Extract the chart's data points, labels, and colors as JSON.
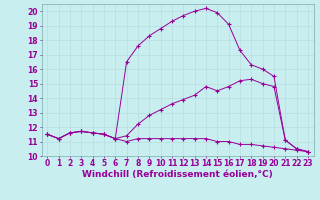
{
  "xlabel": "Windchill (Refroidissement éolien,°C)",
  "bg_color": "#c8eef0",
  "line_color": "#990099",
  "grid_color": "#b8dde0",
  "xlim": [
    -0.5,
    23.5
  ],
  "ylim": [
    10,
    20.5
  ],
  "xticks": [
    0,
    1,
    2,
    3,
    4,
    5,
    6,
    7,
    8,
    9,
    10,
    11,
    12,
    13,
    14,
    15,
    16,
    17,
    18,
    19,
    20,
    21,
    22,
    23
  ],
  "yticks": [
    10,
    11,
    12,
    13,
    14,
    15,
    16,
    17,
    18,
    19,
    20
  ],
  "series1_x": [
    0,
    1,
    2,
    3,
    4,
    5,
    6,
    7,
    8,
    9,
    10,
    11,
    12,
    13,
    14,
    15,
    16,
    17,
    18,
    19,
    20,
    21,
    22,
    23
  ],
  "series1_y": [
    11.5,
    11.2,
    11.6,
    11.7,
    11.6,
    11.5,
    11.2,
    11.4,
    12.2,
    12.8,
    13.2,
    13.6,
    13.9,
    14.2,
    14.8,
    14.5,
    14.8,
    15.2,
    15.3,
    15.0,
    14.8,
    11.1,
    10.5,
    10.3
  ],
  "series2_x": [
    0,
    1,
    2,
    3,
    4,
    5,
    6,
    7,
    8,
    9,
    10,
    11,
    12,
    13,
    14,
    15,
    16,
    17,
    18,
    19,
    20,
    21,
    22,
    23
  ],
  "series2_y": [
    11.5,
    11.2,
    11.6,
    11.7,
    11.6,
    11.5,
    11.2,
    16.5,
    17.6,
    18.3,
    18.8,
    19.3,
    19.7,
    20.0,
    20.2,
    19.9,
    19.1,
    17.3,
    16.3,
    16.0,
    15.5,
    11.1,
    10.5,
    10.3
  ],
  "series3_x": [
    0,
    1,
    2,
    3,
    4,
    5,
    6,
    7,
    8,
    9,
    10,
    11,
    12,
    13,
    14,
    15,
    16,
    17,
    18,
    19,
    20,
    21,
    22,
    23
  ],
  "series3_y": [
    11.5,
    11.2,
    11.6,
    11.7,
    11.6,
    11.5,
    11.2,
    11.0,
    11.2,
    11.2,
    11.2,
    11.2,
    11.2,
    11.2,
    11.2,
    11.0,
    11.0,
    10.8,
    10.8,
    10.7,
    10.6,
    10.5,
    10.4,
    10.3
  ],
  "tick_fontsize": 5.5,
  "xlabel_fontsize": 6.5
}
